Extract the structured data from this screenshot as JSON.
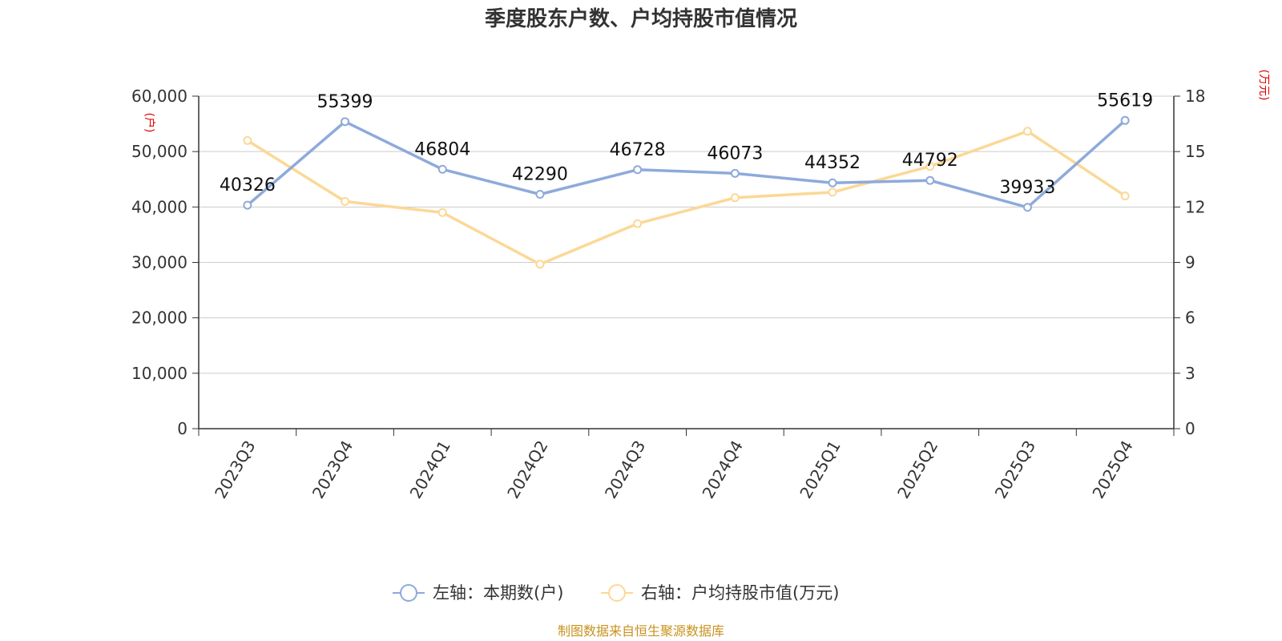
{
  "chart_data": {
    "type": "line",
    "title": "季度股东户数、户均持股市值情况",
    "categories": [
      "2023Q3",
      "2023Q4",
      "2024Q1",
      "2024Q2",
      "2024Q3",
      "2024Q4",
      "2025Q1",
      "2025Q2",
      "2025Q3",
      "2025Q4"
    ],
    "left_axis": {
      "unit": "(户)",
      "ylim": [
        0,
        60000
      ],
      "ticks": [
        0,
        10000,
        20000,
        30000,
        40000,
        50000,
        60000
      ],
      "tick_labels": [
        "0",
        "10,000",
        "20,000",
        "30,000",
        "40,000",
        "50,000",
        "60,000"
      ]
    },
    "right_axis": {
      "unit": "(万元)",
      "ylim": [
        0,
        18
      ],
      "ticks": [
        0,
        3,
        6,
        9,
        12,
        15,
        18
      ],
      "tick_labels": [
        "0",
        "3",
        "6",
        "9",
        "12",
        "15",
        "18"
      ]
    },
    "series": [
      {
        "name": "左轴：本期数(户)",
        "axis": "left",
        "color": "#8eaadb",
        "values": [
          40326,
          55399,
          46804,
          42290,
          46728,
          46073,
          44352,
          44792,
          39933,
          55619
        ],
        "labels": [
          "40326",
          "55399",
          "46804",
          "42290",
          "46728",
          "46073",
          "44352",
          "44792",
          "39933",
          "55619"
        ]
      },
      {
        "name": "右轴：户均持股市值(万元)",
        "axis": "right",
        "color": "#fcd896",
        "values": [
          15.6,
          12.3,
          11.7,
          8.9,
          11.1,
          12.5,
          12.8,
          14.2,
          16.1,
          12.6
        ]
      }
    ],
    "grid": true,
    "legend_position": "bottom-center"
  },
  "source_text": "制图数据来自恒生聚源数据库"
}
